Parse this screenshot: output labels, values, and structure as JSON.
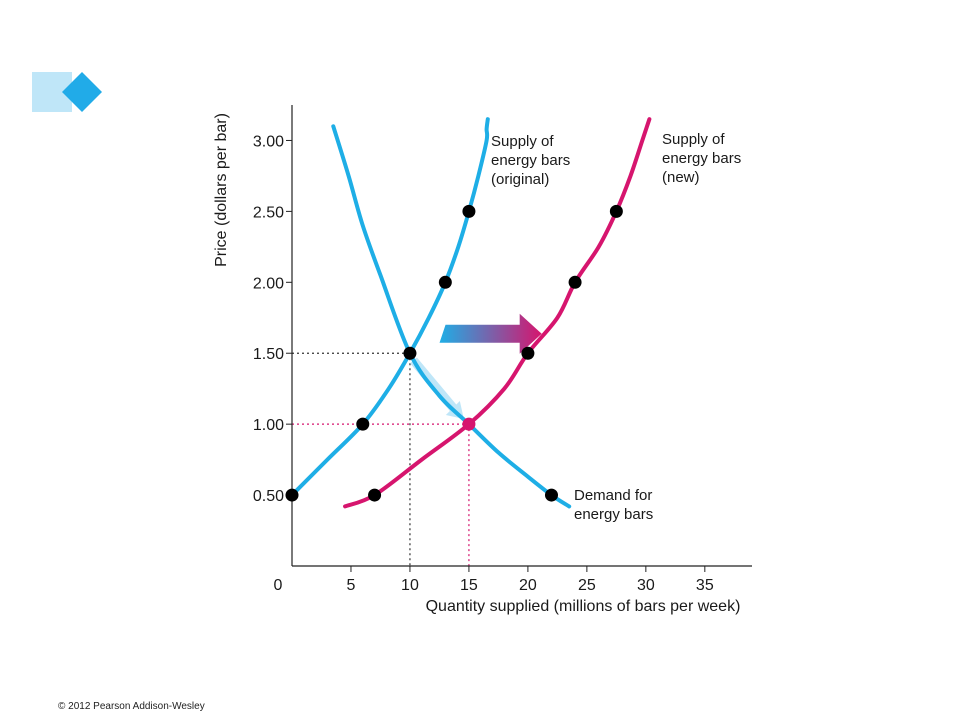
{
  "colors": {
    "supply_original": "#1eaee6",
    "supply_new": "#d6156e",
    "demand": "#1eaee6",
    "highlight": "#d6156e",
    "logo_light": "#bfe6f8",
    "logo_dark": "#21abe8"
  },
  "copyright": "© 2012 Pearson Addison-Wesley",
  "chart_data": {
    "type": "line",
    "xlabel": "Quantity supplied (millions of bars per week)",
    "ylabel": "Price (dollars per bar)",
    "xlim": [
      0,
      39
    ],
    "ylim": [
      0,
      3.25
    ],
    "x_ticks": [
      {
        "value": 0,
        "label": "0",
        "highlight": false
      },
      {
        "value": 5,
        "label": "5",
        "highlight": false
      },
      {
        "value": 10,
        "label": "10",
        "highlight": false
      },
      {
        "value": 15,
        "label": "15",
        "highlight": true
      },
      {
        "value": 20,
        "label": "20",
        "highlight": false
      },
      {
        "value": 25,
        "label": "25",
        "highlight": false
      },
      {
        "value": 30,
        "label": "30",
        "highlight": false
      },
      {
        "value": 35,
        "label": "35",
        "highlight": false
      }
    ],
    "y_ticks": [
      {
        "value": 0.5,
        "label": "0.50",
        "highlight": false
      },
      {
        "value": 1.0,
        "label": "1.00",
        "highlight": true
      },
      {
        "value": 1.5,
        "label": "1.50",
        "highlight": false
      },
      {
        "value": 2.0,
        "label": "2.00",
        "highlight": false
      },
      {
        "value": 2.5,
        "label": "2.50",
        "highlight": false
      },
      {
        "value": 3.0,
        "label": "3.00",
        "highlight": false
      }
    ],
    "series": [
      {
        "key": "supply_original",
        "label_lines": [
          "Supply of",
          "energy bars",
          "(original)"
        ],
        "curve": [
          [
            0,
            0.5
          ],
          [
            3,
            0.75
          ],
          [
            6,
            1.0
          ],
          [
            8.2,
            1.25
          ],
          [
            10,
            1.5
          ],
          [
            11.6,
            1.75
          ],
          [
            13,
            2.0
          ],
          [
            14.1,
            2.25
          ],
          [
            15,
            2.5
          ],
          [
            15.8,
            2.75
          ],
          [
            16.5,
            3.0
          ],
          [
            16.5,
            3.08
          ],
          [
            16.6,
            3.15
          ]
        ],
        "points": [
          [
            0,
            0.5
          ],
          [
            6,
            1.0
          ],
          [
            10,
            1.5
          ],
          [
            13,
            2.0
          ],
          [
            15,
            2.5
          ]
        ]
      },
      {
        "key": "supply_new",
        "label_lines": [
          "Supply of",
          "energy bars",
          "(new)"
        ],
        "curve": [
          [
            4.5,
            0.42
          ],
          [
            7,
            0.5
          ],
          [
            11,
            0.75
          ],
          [
            15,
            1.0
          ],
          [
            18,
            1.25
          ],
          [
            20,
            1.5
          ],
          [
            22.5,
            1.75
          ],
          [
            24,
            2.0
          ],
          [
            26,
            2.25
          ],
          [
            27.5,
            2.5
          ],
          [
            28.7,
            2.75
          ],
          [
            29.7,
            3.0
          ],
          [
            30.3,
            3.15
          ]
        ],
        "points": [
          [
            7,
            0.5
          ],
          [
            20,
            1.5
          ],
          [
            24,
            2.0
          ],
          [
            27.5,
            2.5
          ]
        ]
      },
      {
        "key": "demand",
        "label_lines": [
          "Demand for",
          "energy bars"
        ],
        "curve": [
          [
            3.5,
            3.1
          ],
          [
            4.8,
            2.75
          ],
          [
            6,
            2.4
          ],
          [
            7.5,
            2.05
          ],
          [
            10,
            1.5
          ],
          [
            12.5,
            1.2
          ],
          [
            15,
            1.0
          ],
          [
            17.5,
            0.8
          ],
          [
            20,
            0.63
          ],
          [
            22,
            0.5
          ],
          [
            23.5,
            0.42
          ]
        ],
        "points": [
          [
            22,
            0.5
          ]
        ]
      }
    ],
    "equilibria": [
      {
        "name": "original",
        "x": 10,
        "y": 1.5
      },
      {
        "name": "new",
        "x": 15,
        "y": 1.0
      }
    ],
    "annotations": [
      {
        "type": "shift-arrow",
        "from": [
          12,
          1.75
        ],
        "to": [
          21,
          1.75
        ]
      },
      {
        "type": "move-arrow",
        "from": [
          10.3,
          1.45
        ],
        "to": [
          14.4,
          1.05
        ]
      }
    ]
  }
}
